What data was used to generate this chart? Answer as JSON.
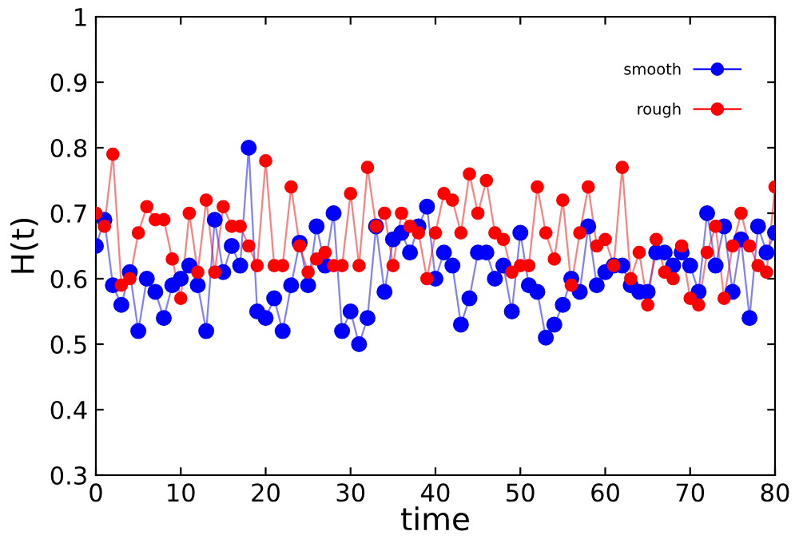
{
  "chart_data": {
    "type": "line",
    "xlabel": "time",
    "ylabel": "H(t)",
    "x": [
      0,
      1,
      2,
      3,
      4,
      5,
      6,
      7,
      8,
      9,
      10,
      11,
      12,
      13,
      14,
      15,
      16,
      17,
      18,
      19,
      20,
      21,
      22,
      23,
      24,
      25,
      26,
      27,
      28,
      29,
      30,
      31,
      32,
      33,
      34,
      35,
      36,
      37,
      38,
      39,
      40,
      41,
      42,
      43,
      44,
      45,
      46,
      47,
      48,
      49,
      50,
      51,
      52,
      53,
      54,
      55,
      56,
      57,
      58,
      59,
      60,
      61,
      62,
      63,
      64,
      65,
      66,
      67,
      68,
      69,
      70,
      71,
      72,
      73,
      74,
      75,
      76,
      77,
      78,
      79,
      80
    ],
    "series": [
      {
        "name": "smooth",
        "color": "#0000ff",
        "values": [
          0.65,
          0.69,
          0.59,
          0.56,
          0.61,
          0.52,
          0.6,
          0.58,
          0.54,
          0.59,
          0.6,
          0.62,
          0.59,
          0.52,
          0.69,
          0.61,
          0.65,
          0.62,
          0.8,
          0.55,
          0.54,
          0.57,
          0.52,
          0.59,
          0.655,
          0.59,
          0.68,
          0.62,
          0.7,
          0.52,
          0.55,
          0.5,
          0.54,
          0.68,
          0.58,
          0.66,
          0.67,
          0.64,
          0.68,
          0.71,
          0.6,
          0.64,
          0.62,
          0.53,
          0.57,
          0.64,
          0.64,
          0.6,
          0.62,
          0.55,
          0.67,
          0.59,
          0.58,
          0.51,
          0.53,
          0.56,
          0.6,
          0.58,
          0.68,
          0.59,
          0.61,
          0.62,
          0.62,
          0.59,
          0.58,
          0.58,
          0.64,
          0.64,
          0.62,
          0.64,
          0.62,
          0.58,
          0.7,
          0.62,
          0.68,
          0.58,
          0.66,
          0.54,
          0.68,
          0.64,
          0.67
        ]
      },
      {
        "name": "rough",
        "color": "#ff0000",
        "values": [
          0.7,
          0.68,
          0.79,
          0.59,
          0.6,
          0.67,
          0.71,
          0.69,
          0.69,
          0.63,
          0.57,
          0.7,
          0.61,
          0.72,
          0.61,
          0.71,
          0.68,
          0.68,
          0.65,
          0.62,
          0.78,
          0.62,
          0.62,
          0.74,
          0.65,
          0.61,
          0.63,
          0.64,
          0.62,
          0.62,
          0.73,
          0.62,
          0.77,
          0.68,
          0.7,
          0.62,
          0.7,
          0.68,
          0.67,
          0.6,
          0.67,
          0.73,
          0.72,
          0.67,
          0.76,
          0.7,
          0.75,
          0.67,
          0.66,
          0.61,
          0.62,
          0.62,
          0.74,
          0.67,
          0.63,
          0.72,
          0.59,
          0.67,
          0.74,
          0.65,
          0.66,
          0.62,
          0.77,
          0.6,
          0.64,
          0.56,
          0.66,
          0.61,
          0.6,
          0.65,
          0.57,
          0.56,
          0.64,
          0.68,
          0.57,
          0.65,
          0.7,
          0.65,
          0.62,
          0.61,
          0.74
        ]
      }
    ],
    "xlim": [
      0,
      80
    ],
    "xticks": [
      0,
      10,
      20,
      30,
      40,
      50,
      60,
      70,
      80
    ],
    "ylim": [
      0.3,
      1
    ],
    "yticks": [
      0.3,
      0.4,
      0.5,
      0.6,
      0.7,
      0.8,
      0.9,
      1
    ],
    "marker": "circle",
    "line_style": "solid",
    "grid": false,
    "legend": "top right"
  }
}
